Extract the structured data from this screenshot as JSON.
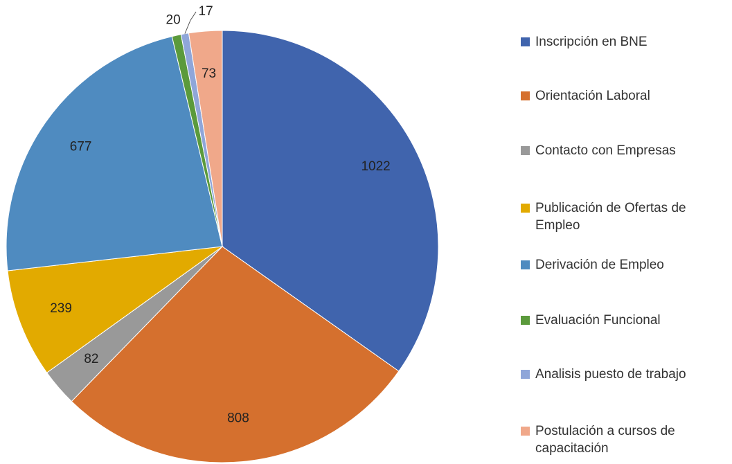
{
  "chart_data": {
    "type": "pie",
    "categories": [
      "Inscripción en BNE",
      "Orientación Laboral",
      "Contacto con Empresas",
      "Publicación de Ofertas de Empleo",
      "Derivación de Empleo",
      "Evaluación Funcional",
      "Analisis puesto de trabajo",
      "Postulación a cursos de capacitación"
    ],
    "values": [
      1022,
      808,
      82,
      239,
      677,
      20,
      17,
      73
    ],
    "colors": [
      "#4064ad",
      "#d5702e",
      "#999999",
      "#e2aa00",
      "#4f8bc0",
      "#5b9a3c",
      "#8fa6d9",
      "#f0a88a"
    ],
    "legend": "right"
  }
}
